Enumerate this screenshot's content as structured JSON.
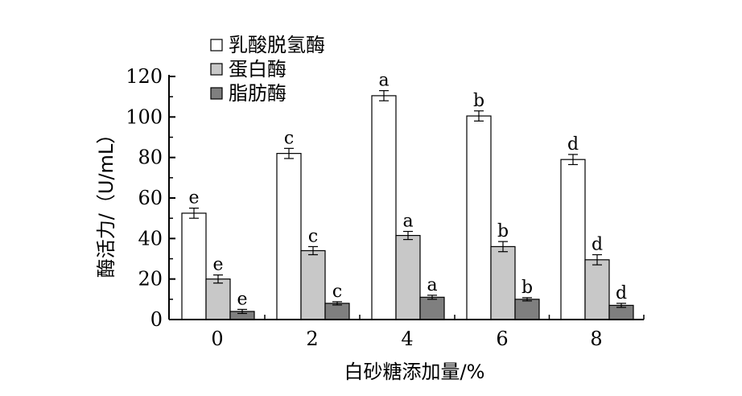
{
  "chart_data": {
    "type": "bar",
    "xlabel": "白砂糖添加量/%",
    "ylabel": "酶活力/（U/mL）",
    "categories": [
      "0",
      "2",
      "4",
      "6",
      "8"
    ],
    "ylim": [
      0,
      120
    ],
    "yticks": [
      0,
      20,
      40,
      60,
      80,
      100,
      120
    ],
    "grid": false,
    "legend": "top-left",
    "series": [
      {
        "name": "乳酸脱氢酶",
        "color": "#ffffff",
        "values": [
          52.5,
          82.0,
          110.5,
          100.5,
          79.0
        ],
        "errors": [
          2.5,
          2.5,
          2.5,
          2.5,
          2.5
        ],
        "labels": [
          "e",
          "c",
          "a",
          "b",
          "d"
        ]
      },
      {
        "name": "蛋白酶",
        "color": "#c8c8c8",
        "values": [
          20.0,
          34.0,
          41.5,
          36.0,
          29.5
        ],
        "errors": [
          2.0,
          2.0,
          2.0,
          2.5,
          2.5
        ],
        "labels": [
          "e",
          "c",
          "a",
          "b",
          "d"
        ]
      },
      {
        "name": "脂肪酶",
        "color": "#7f7f7f",
        "values": [
          4.0,
          8.0,
          11.0,
          10.0,
          7.0
        ],
        "errors": [
          1.0,
          0.8,
          1.0,
          0.8,
          1.0
        ],
        "labels": [
          "e",
          "c",
          "a",
          "b",
          "d"
        ]
      }
    ]
  }
}
